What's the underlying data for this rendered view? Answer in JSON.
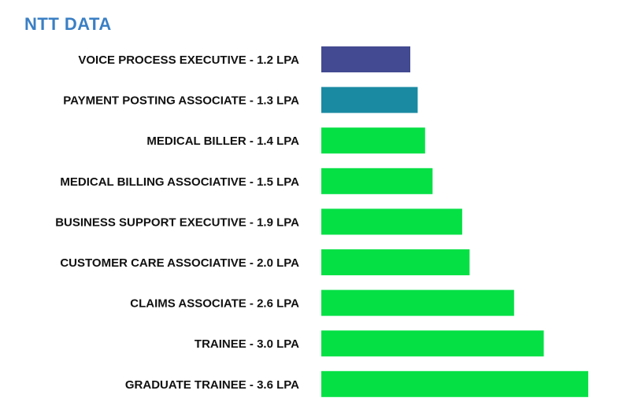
{
  "logo": {
    "text": "NTT DATA",
    "color": "#3a7fc4"
  },
  "chart_data": {
    "type": "bar",
    "orientation": "horizontal",
    "title": "",
    "xlabel": "",
    "ylabel": "",
    "categories": [
      "VOICE PROCESS EXECUTIVE - 1.2 LPA",
      "PAYMENT POSTING ASSOCIATE - 1.3 LPA",
      "MEDICAL BILLER - 1.4 LPA",
      "MEDICAL BILLING ASSOCIATIVE - 1.5 LPA",
      "BUSINESS SUPPORT EXECUTIVE - 1.9 LPA",
      "CUSTOMER CARE ASSOCIATIVE - 2.0 LPA",
      "CLAIMS ASSOCIATE - 2.6  LPA",
      "TRAINEE - 3.0 LPA",
      "GRADUATE TRAINEE - 3.6 LPA"
    ],
    "values": [
      1.2,
      1.3,
      1.4,
      1.5,
      1.9,
      2.0,
      2.6,
      3.0,
      3.6
    ],
    "colors": [
      "#434a91",
      "#1a8aa3",
      "#05e045",
      "#05e045",
      "#05e045",
      "#05e045",
      "#05e045",
      "#05e045",
      "#05e045"
    ],
    "xlim": [
      0,
      3.6
    ],
    "grid": false,
    "legend": "none"
  }
}
